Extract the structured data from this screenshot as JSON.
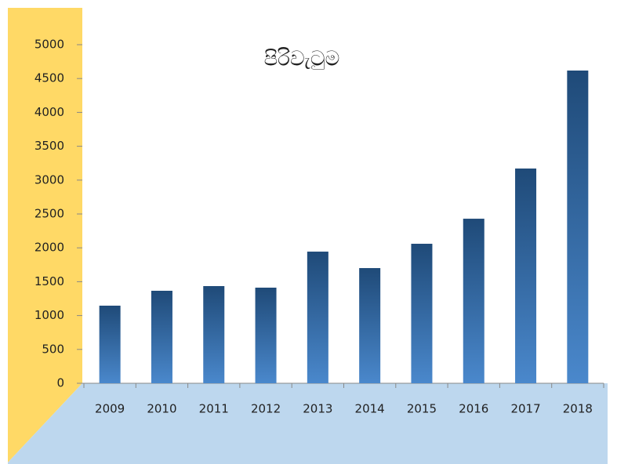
{
  "chart_data": {
    "type": "bar",
    "title": "පිරිවැටුම",
    "categories": [
      "2009",
      "2010",
      "2011",
      "2012",
      "2013",
      "2014",
      "2015",
      "2016",
      "2017",
      "2018"
    ],
    "values": [
      1146,
      1366,
      1435,
      1412,
      1944,
      1701,
      2060,
      2430,
      3171,
      4618
    ],
    "color": "#2e6099",
    "ylim": [
      0,
      5000
    ],
    "yticks": [
      0,
      500,
      1000,
      1500,
      2000,
      2500,
      3000,
      3500,
      4000,
      4500,
      5000
    ]
  }
}
